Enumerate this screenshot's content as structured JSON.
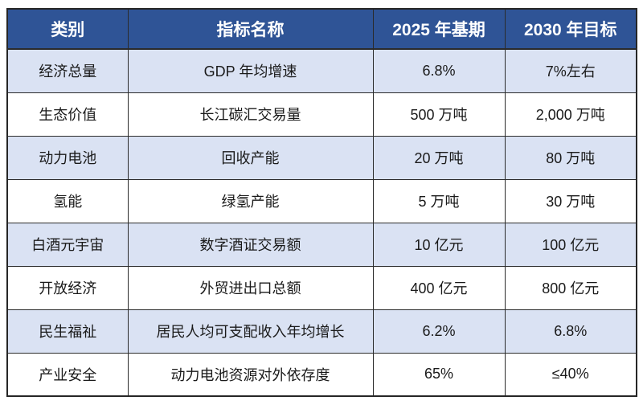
{
  "table": {
    "headers": [
      "类别",
      "指标名称",
      "2025 年基期",
      "2030 年目标"
    ],
    "rows": [
      {
        "category": "经济总量",
        "indicator": "GDP 年均增速",
        "base_2025": "6.8%",
        "target_2030": "7%左右"
      },
      {
        "category": "生态价值",
        "indicator": "长江碳汇交易量",
        "base_2025": "500 万吨",
        "target_2030": "2,000 万吨"
      },
      {
        "category": "动力电池",
        "indicator": "回收产能",
        "base_2025": "20 万吨",
        "target_2030": "80 万吨"
      },
      {
        "category": "氢能",
        "indicator": "绿氢产能",
        "base_2025": "5 万吨",
        "target_2030": "30 万吨"
      },
      {
        "category": "白酒元宇宙",
        "indicator": "数字酒证交易额",
        "base_2025": "10 亿元",
        "target_2030": "100 亿元"
      },
      {
        "category": "开放经济",
        "indicator": "外贸进出口总额",
        "base_2025": "400 亿元",
        "target_2030": "800 亿元"
      },
      {
        "category": "民生福祉",
        "indicator": "居民人均可支配收入年均增长",
        "base_2025": "6.2%",
        "target_2030": "6.8%"
      },
      {
        "category": "产业安全",
        "indicator": "动力电池资源对外依存度",
        "base_2025": "65%",
        "target_2030": "≤40%"
      }
    ],
    "colors": {
      "header_bg": "#2F5496",
      "header_text": "#FFFFFF",
      "row_alt_bg": "#DAE2F3",
      "row_bg": "#FFFFFF",
      "border": "#2B2B2B",
      "text": "#1A1A1A"
    }
  }
}
